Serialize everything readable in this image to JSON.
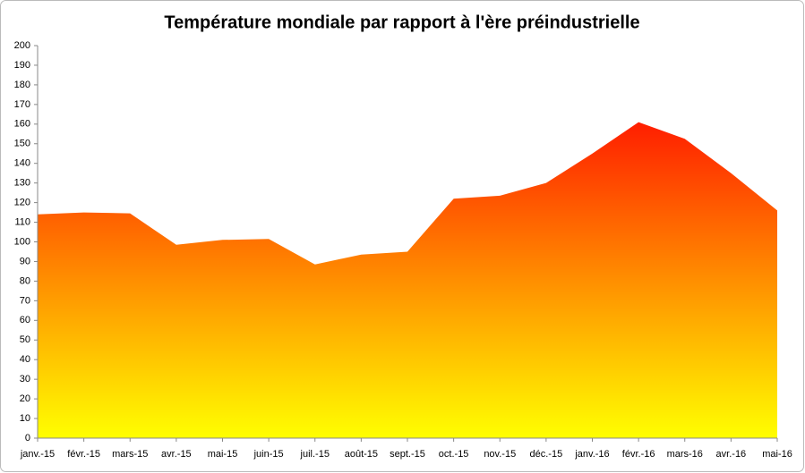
{
  "chart_data": {
    "type": "area",
    "title": "Température mondiale par rapport à l'ère préindustrielle",
    "categories": [
      "janv.-15",
      "févr.-15",
      "mars-15",
      "avr.-15",
      "mai-15",
      "juin-15",
      "juil.-15",
      "août-15",
      "sept.-15",
      "oct.-15",
      "nov.-15",
      "déc.-15",
      "janv.-16",
      "févr.-16",
      "mars-16",
      "avr.-16",
      "mai-16"
    ],
    "values": [
      114,
      115,
      114.5,
      98.5,
      101,
      101.5,
      88.5,
      93.5,
      95,
      122,
      123.5,
      130,
      145,
      161,
      152.5,
      135,
      116
    ],
    "gradient": [
      "#ff1e00",
      "#ffff00"
    ],
    "ylim": [
      0,
      200
    ],
    "yticks": [
      0,
      10,
      20,
      30,
      40,
      50,
      60,
      70,
      80,
      90,
      100,
      110,
      120,
      130,
      140,
      150,
      160,
      170,
      180,
      190,
      200
    ]
  }
}
